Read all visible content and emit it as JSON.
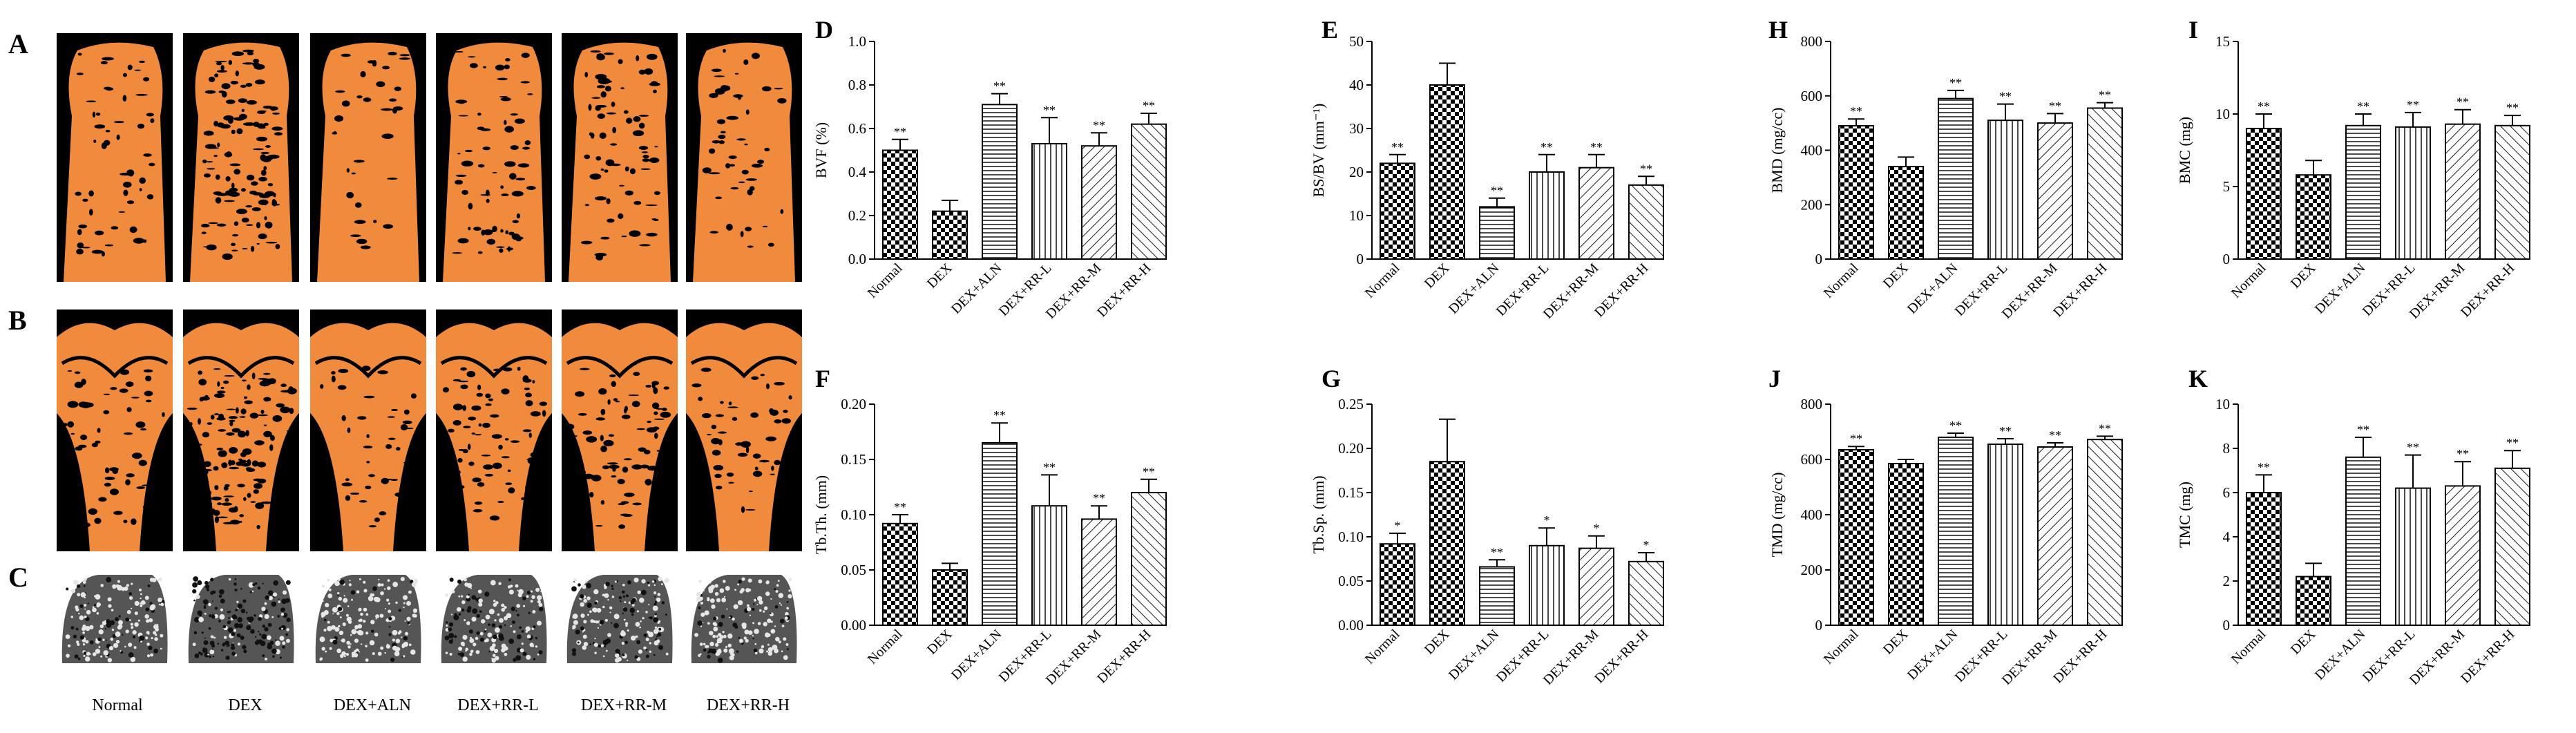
{
  "panel_letters": {
    "A": "A",
    "B": "B",
    "C": "C"
  },
  "group_labels": [
    "Normal",
    "DEX",
    "DEX+ALN",
    "DEX+RR-L",
    "DEX+RR-M",
    "DEX+RR-H"
  ],
  "colors": {
    "bone": "#f08a3c",
    "background": "#000000",
    "bar_stroke": "#000000"
  },
  "chart_data": [
    {
      "id": "D",
      "type": "bar",
      "panel_letter": "D",
      "ylabel": "BVF (%)",
      "categories": [
        "Normal",
        "DEX",
        "DEX+ALN",
        "DEX+RR-L",
        "DEX+RR-M",
        "DEX+RR-H"
      ],
      "values": [
        0.5,
        0.22,
        0.71,
        0.53,
        0.52,
        0.62
      ],
      "errors": [
        0.05,
        0.05,
        0.05,
        0.12,
        0.06,
        0.05
      ],
      "significance": [
        "**",
        "",
        "**",
        "**",
        "**",
        "**"
      ],
      "ylim": [
        0,
        1.0
      ],
      "yticks": [
        "0.0",
        "0.2",
        "0.4",
        "0.6",
        "0.8",
        "1.0"
      ]
    },
    {
      "id": "E",
      "type": "bar",
      "panel_letter": "E",
      "ylabel": "BS/BV (mm⁻¹)",
      "categories": [
        "Normal",
        "DEX",
        "DEX+ALN",
        "DEX+RR-L",
        "DEX+RR-M",
        "DEX+RR-H"
      ],
      "values": [
        22,
        40,
        12,
        20,
        21,
        17
      ],
      "errors": [
        2,
        5,
        2,
        4,
        3,
        2
      ],
      "significance": [
        "**",
        "",
        "**",
        "**",
        "**",
        "**"
      ],
      "ylim": [
        0,
        50
      ],
      "yticks": [
        "0",
        "10",
        "20",
        "30",
        "40",
        "50"
      ]
    },
    {
      "id": "H",
      "type": "bar",
      "panel_letter": "H",
      "ylabel": "BMD (mg/cc)",
      "categories": [
        "Normal",
        "DEX",
        "DEX+ALN",
        "DEX+RR-L",
        "DEX+RR-M",
        "DEX+RR-H"
      ],
      "values": [
        490,
        340,
        590,
        510,
        500,
        555
      ],
      "errors": [
        25,
        35,
        30,
        60,
        35,
        20
      ],
      "significance": [
        "**",
        "",
        "**",
        "**",
        "**",
        "**"
      ],
      "ylim": [
        0,
        800
      ],
      "yticks": [
        "0",
        "200",
        "400",
        "600",
        "800"
      ]
    },
    {
      "id": "I",
      "type": "bar",
      "panel_letter": "I",
      "ylabel": "BMC (mg)",
      "categories": [
        "Normal",
        "DEX",
        "DEX+ALN",
        "DEX+RR-L",
        "DEX+RR-M",
        "DEX+RR-H"
      ],
      "values": [
        9.0,
        5.8,
        9.2,
        9.1,
        9.3,
        9.2
      ],
      "errors": [
        1.0,
        1.0,
        0.8,
        1.0,
        1.0,
        0.7
      ],
      "significance": [
        "**",
        "",
        "**",
        "**",
        "**",
        "**"
      ],
      "ylim": [
        0,
        15
      ],
      "yticks": [
        "0",
        "5",
        "10",
        "15"
      ]
    },
    {
      "id": "F",
      "type": "bar",
      "panel_letter": "F",
      "ylabel": "Tb.Th. (mm)",
      "categories": [
        "Normal",
        "DEX",
        "DEX+ALN",
        "DEX+RR-L",
        "DEX+RR-M",
        "DEX+RR-H"
      ],
      "values": [
        0.092,
        0.05,
        0.165,
        0.108,
        0.096,
        0.12
      ],
      "errors": [
        0.008,
        0.006,
        0.018,
        0.028,
        0.012,
        0.012
      ],
      "significance": [
        "**",
        "",
        "**",
        "**",
        "**",
        "**"
      ],
      "ylim": [
        0,
        0.2
      ],
      "yticks": [
        "0.00",
        "0.05",
        "0.10",
        "0.15",
        "0.20"
      ]
    },
    {
      "id": "G",
      "type": "bar",
      "panel_letter": "G",
      "ylabel": "Tb.Sp. (mm)",
      "categories": [
        "Normal",
        "DEX",
        "DEX+ALN",
        "DEX+RR-L",
        "DEX+RR-M",
        "DEX+RR-H"
      ],
      "values": [
        0.092,
        0.185,
        0.066,
        0.09,
        0.087,
        0.072
      ],
      "errors": [
        0.012,
        0.048,
        0.008,
        0.02,
        0.014,
        0.01
      ],
      "significance": [
        "*",
        "",
        "**",
        "*",
        "*",
        "*"
      ],
      "ylim": [
        0,
        0.25
      ],
      "yticks": [
        "0.00",
        "0.05",
        "0.10",
        "0.15",
        "0.20",
        "0.25"
      ]
    },
    {
      "id": "J",
      "type": "bar",
      "panel_letter": "J",
      "ylabel": "TMD (mg/cc)",
      "categories": [
        "Normal",
        "DEX",
        "DEX+ALN",
        "DEX+RR-L",
        "DEX+RR-M",
        "DEX+RR-H"
      ],
      "values": [
        635,
        585,
        680,
        655,
        645,
        672
      ],
      "errors": [
        12,
        15,
        15,
        20,
        15,
        12
      ],
      "significance": [
        "**",
        "",
        "**",
        "**",
        "**",
        "**"
      ],
      "ylim": [
        0,
        800
      ],
      "yticks": [
        "0",
        "200",
        "400",
        "600",
        "800"
      ]
    },
    {
      "id": "K",
      "type": "bar",
      "panel_letter": "K",
      "ylabel": "TMC (mg)",
      "categories": [
        "Normal",
        "DEX",
        "DEX+ALN",
        "DEX+RR-L",
        "DEX+RR-M",
        "DEX+RR-H"
      ],
      "values": [
        6.0,
        2.2,
        7.6,
        6.2,
        6.3,
        7.1
      ],
      "errors": [
        0.8,
        0.6,
        0.9,
        1.5,
        1.1,
        0.8
      ],
      "significance": [
        "**",
        "",
        "**",
        "**",
        "**",
        "**"
      ],
      "ylim": [
        0,
        10
      ],
      "yticks": [
        "0",
        "2",
        "4",
        "6",
        "8",
        "10"
      ]
    }
  ]
}
